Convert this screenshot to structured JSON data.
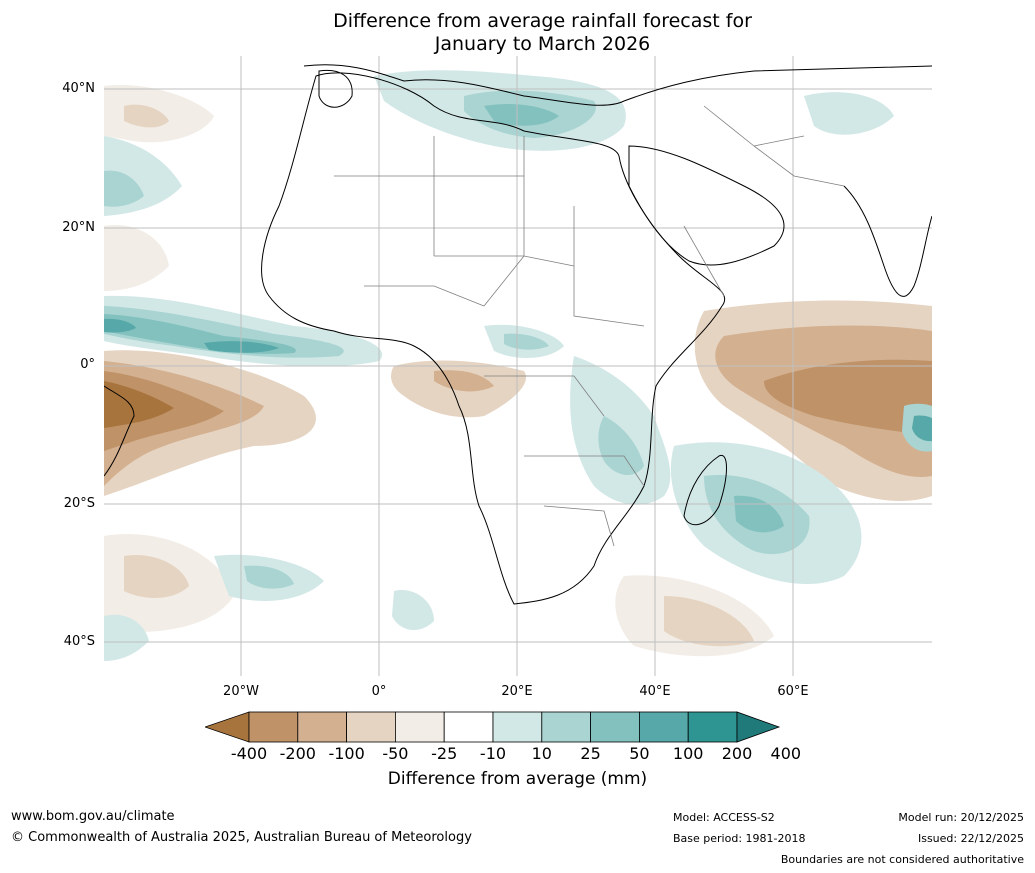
{
  "title": {
    "line1": "Difference from average rainfall forecast for",
    "line2": "January to March 2026"
  },
  "map": {
    "lat_labels": [
      "40°N",
      "20°N",
      "0°",
      "20°S",
      "40°S"
    ],
    "lon_labels": [
      "20°W",
      "0°",
      "20°E",
      "40°E",
      "60°E"
    ]
  },
  "colorbar": {
    "ticks": [
      "-400",
      "-200",
      "-100",
      "-50",
      "-25",
      "-10",
      "10",
      "25",
      "50",
      "100",
      "200",
      "400"
    ],
    "colors": [
      "#a8743d",
      "#bf9268",
      "#d3b090",
      "#e6d4c2",
      "#f2ede6",
      "#ffffff",
      "#d2e8e6",
      "#a9d4d2",
      "#83c1bf",
      "#56a9a8",
      "#2f9593",
      "#207a79"
    ],
    "label": "Difference from average (mm)"
  },
  "footer": {
    "website": "www.bom.gov.au/climate",
    "copyright": "© Commonwealth of Australia 2025, Australian Bureau of Meteorology",
    "model": "Model: ACCESS-S2",
    "base_period": "Base period: 1981-2018",
    "model_run": "Model run: 20/12/2025",
    "issued": "Issued: 22/12/2025",
    "disclaimer": "Boundaries are not considered authoritative"
  }
}
